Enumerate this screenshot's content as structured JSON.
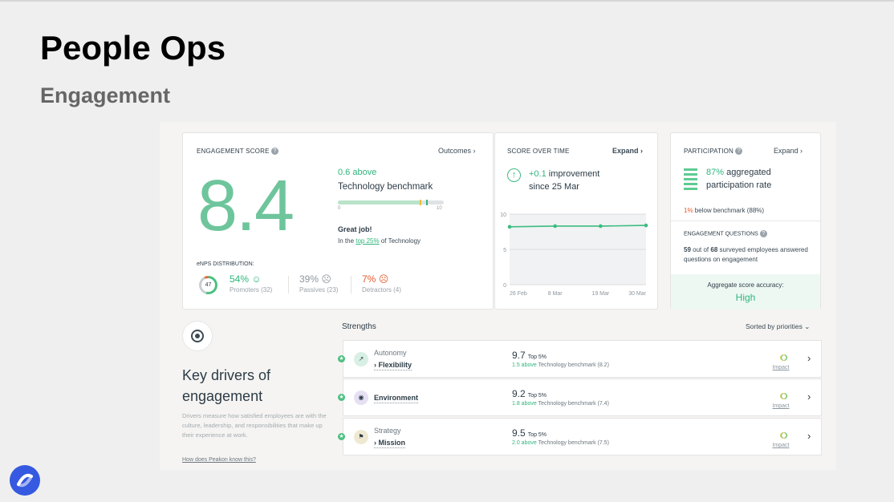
{
  "slide": {
    "title": "People Ops",
    "subtitle": "Engagement"
  },
  "engagement": {
    "caption": "ENGAGEMENT SCORE",
    "outcomes_link": "Outcomes",
    "score": "8.4",
    "above_text": "0.6 above",
    "benchmark_name": "Technology benchmark",
    "benchmark_position": 0.79,
    "tick_min": "0",
    "tick_max": "10",
    "great_job": "Great job!",
    "top_prefix": "In the ",
    "top_pct": "top 25%",
    "top_suffix": " of Technology",
    "enps_caption": "eNPS DISTRIBUTION:",
    "enps_score": "47",
    "promoters_pct": "54%",
    "promoters_label": "Promoters (32)",
    "passives_pct": "39%",
    "passives_label": "Passives (23)",
    "detractors_pct": "7%",
    "detractors_label": "Detractors (4)"
  },
  "score_over_time": {
    "caption": "SCORE OVER TIME",
    "expand": "Expand",
    "improvement_value": "+0.1",
    "improvement_text": "improvement",
    "since": "since 25 Mar"
  },
  "chart_data": {
    "type": "line",
    "x": [
      "26 Feb",
      "8 Mar",
      "19 Mar",
      "30 Mar"
    ],
    "series": [
      {
        "values": [
          8.2,
          8.3,
          8.3,
          8.4
        ]
      }
    ],
    "ylim": [
      0,
      10
    ],
    "yticks": [
      "10",
      "5",
      "0"
    ],
    "grid": true
  },
  "participation": {
    "caption": "PARTICIPATION",
    "expand": "Expand",
    "rate": "87%",
    "rate_text_1": "aggregated",
    "rate_text_2": "participation rate",
    "below_pct": "1%",
    "below_text": "below benchmark (88%)",
    "questions_caption": "ENGAGEMENT QUESTIONS",
    "questions_count": "59",
    "questions_total": "68",
    "questions_mid": "out of",
    "questions_suffix": "surveyed employees answered questions on engagement",
    "accuracy_label": "Aggregate score accuracy:",
    "accuracy_value": "High"
  },
  "key_drivers": {
    "title": "Key drivers of engagement",
    "description": "Drivers measure how satisfied employees are with the culture, leadership, and responsibilities that make up their experience at work.",
    "link": "How does Peakon know this?",
    "strengths_label": "Strengths",
    "sort_label": "Sorted by priorities",
    "impact_label": "Impact"
  },
  "drivers": [
    {
      "parent": "Autonomy",
      "name": "› Flexibility",
      "score": "9.7",
      "top": "Top 5%",
      "diff": "1.5 above",
      "bench": "Technology benchmark (8.2)",
      "icon_color": "#d8efe6",
      "icon_glyph": "↗"
    },
    {
      "parent": "",
      "name": "Environment",
      "score": "9.2",
      "top": "Top 5%",
      "diff": "1.8 above",
      "bench": "Technology benchmark (7.4)",
      "icon_color": "#e6e0f3",
      "icon_glyph": "◉"
    },
    {
      "parent": "Strategy",
      "name": "› Mission",
      "score": "9.5",
      "top": "Top 5%",
      "diff": "2.0 above",
      "bench": "Technology benchmark (7.5)",
      "icon_color": "#efe9d2",
      "icon_glyph": "⚑"
    }
  ]
}
